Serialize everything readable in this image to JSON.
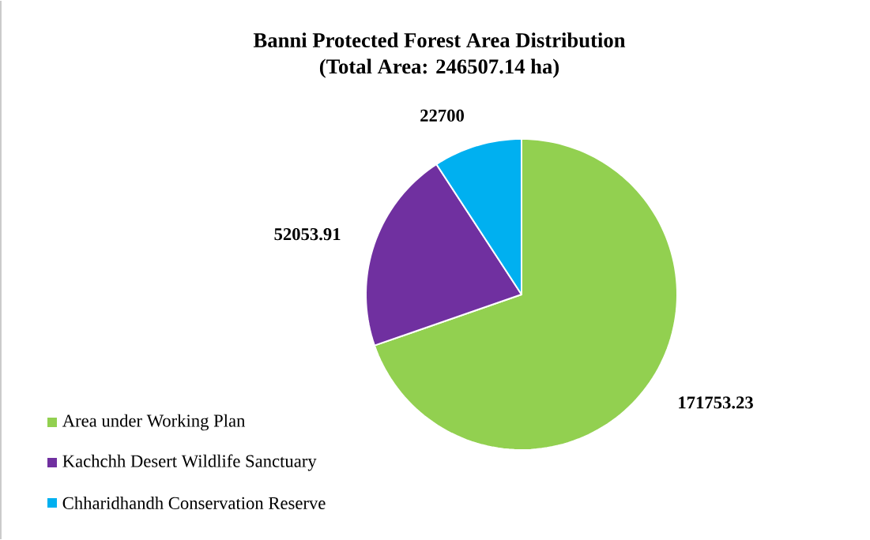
{
  "chart_data": {
    "type": "pie",
    "title": "Banni Protected Forest Area Distribution",
    "subtitle": "(Total Area: 246507.14 ha)",
    "categories": [
      "Area under Working Plan",
      "Kachchh Desert Wildlife Sanctuary",
      "Chharidhandh Conservation Reserve"
    ],
    "values": [
      171753.23,
      52053.91,
      22700
    ],
    "colors": [
      "#92d050",
      "#7030a0",
      "#00b0f0"
    ],
    "data_labels": true,
    "legend": "bottom left"
  }
}
